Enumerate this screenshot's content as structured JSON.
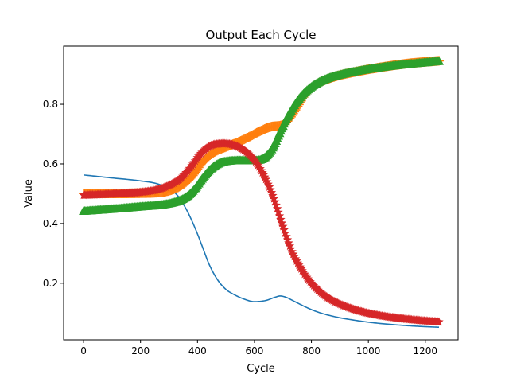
{
  "chart_data": {
    "type": "line",
    "title": "Output Each Cycle",
    "xlabel": "Cycle",
    "ylabel": "Value",
    "xlim": [
      -70,
      1315
    ],
    "ylim": [
      0.01,
      0.995
    ],
    "xticks": [
      0,
      200,
      400,
      600,
      800,
      1000,
      1200
    ],
    "yticks": [
      0.2,
      0.4,
      0.6,
      0.8
    ],
    "grid": false,
    "legend": "none",
    "series": [
      {
        "style": "line",
        "color": "#1f77b4",
        "x": [
          0,
          100,
          200,
          260,
          300,
          330,
          360,
          380,
          400,
          420,
          440,
          470,
          500,
          530,
          560,
          600,
          640,
          670,
          690,
          710,
          740,
          780,
          820,
          880,
          950,
          1020,
          1100,
          1180,
          1250
        ],
        "y": [
          0.563,
          0.553,
          0.543,
          0.533,
          0.516,
          0.494,
          0.449,
          0.41,
          0.365,
          0.315,
          0.265,
          0.212,
          0.179,
          0.161,
          0.148,
          0.138,
          0.142,
          0.152,
          0.157,
          0.153,
          0.139,
          0.12,
          0.104,
          0.088,
          0.076,
          0.067,
          0.06,
          0.055,
          0.052
        ]
      },
      {
        "style": "marker",
        "marker": "+",
        "color": "#ff7f0e",
        "x": [
          0,
          100,
          200,
          260,
          300,
          340,
          380,
          420,
          460,
          500,
          540,
          580,
          620,
          660,
          700,
          720,
          750,
          780,
          820,
          880,
          950,
          1050,
          1150,
          1250
        ],
        "y": [
          0.501,
          0.501,
          0.502,
          0.504,
          0.51,
          0.526,
          0.557,
          0.608,
          0.64,
          0.657,
          0.672,
          0.69,
          0.71,
          0.725,
          0.731,
          0.748,
          0.79,
          0.835,
          0.868,
          0.892,
          0.908,
          0.925,
          0.938,
          0.946
        ]
      },
      {
        "style": "marker",
        "marker": "^",
        "color": "#2ca02c",
        "x": [
          0,
          100,
          200,
          280,
          330,
          360,
          390,
          420,
          450,
          480,
          520,
          560,
          600,
          630,
          650,
          670,
          690,
          720,
          760,
          800,
          850,
          920,
          1000,
          1100,
          1250
        ],
        "y": [
          0.442,
          0.449,
          0.457,
          0.464,
          0.475,
          0.489,
          0.516,
          0.555,
          0.586,
          0.604,
          0.611,
          0.612,
          0.612,
          0.618,
          0.635,
          0.665,
          0.707,
          0.765,
          0.823,
          0.859,
          0.885,
          0.904,
          0.918,
          0.931,
          0.945
        ]
      },
      {
        "style": "marker",
        "marker": "*",
        "color": "#d62728",
        "x": [
          0,
          100,
          200,
          260,
          300,
          340,
          380,
          410,
          440,
          470,
          500,
          530,
          560,
          600,
          640,
          670,
          700,
          730,
          760,
          800,
          850,
          900,
          960,
          1020,
          1100,
          1180,
          1250
        ],
        "y": [
          0.495,
          0.499,
          0.505,
          0.514,
          0.528,
          0.551,
          0.594,
          0.633,
          0.658,
          0.667,
          0.668,
          0.662,
          0.648,
          0.612,
          0.548,
          0.478,
          0.39,
          0.31,
          0.254,
          0.2,
          0.156,
          0.13,
          0.109,
          0.095,
          0.083,
          0.075,
          0.07
        ]
      }
    ]
  }
}
